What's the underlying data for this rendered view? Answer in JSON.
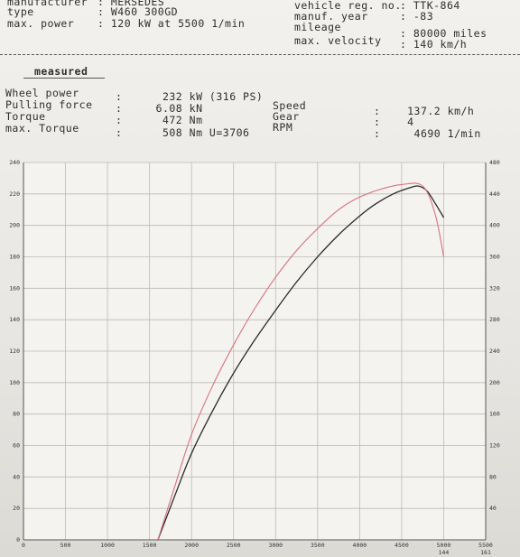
{
  "vehicle": {
    "manufacturer_label": "manufacturer",
    "manufacturer_value": ": MERSEDES",
    "type_label": "type",
    "type_value": ": W460 300GD",
    "max_power_label": "max. power",
    "max_power_value": ": 120 kW at 5500 1/min",
    "reg_label": "vehicle reg. no.",
    "reg_value": ": TTK-864",
    "year_label": "manuf. year",
    "year_value": ": -83",
    "mileage_label": "mileage",
    "mileage_value": ": 80000 miles",
    "velocity_label": "max. velocity",
    "velocity_value": ": 140 km/h"
  },
  "measured": {
    "heading": "measured",
    "wheel_power_label": "Wheel power",
    "wheel_power_value": ":      232 kW (316 PS)",
    "pulling_force_label": "Pulling force",
    "pulling_force_value": ":     6.08 kN",
    "torque_label": "Torque",
    "torque_value": ":      472 Nm",
    "max_torque_label": "max. Torque",
    "max_torque_value": ":      508 Nm U=3706",
    "speed_label": "Speed",
    "speed_value": ":    137.2 km/h",
    "gear_label": "Gear",
    "gear_value": ":    4",
    "rpm_label": "RPM",
    "rpm_value": ":     4690 1/min"
  },
  "colors": {
    "grid": "#bdbab4",
    "axis": "#555555",
    "power_curve": "#2a2a2a",
    "torque_curve": "#d9707a"
  },
  "chart_data": {
    "type": "line",
    "title": "",
    "xlabel": "",
    "ylabel": "",
    "xlim": [
      0,
      5500
    ],
    "ylim_left": [
      0,
      240
    ],
    "ylim_right": [
      0,
      480
    ],
    "grid": true,
    "x_ticks": [
      "0",
      "500",
      "1000",
      "1500",
      "2000",
      "2500",
      "3000",
      "3500",
      "4000",
      "4500",
      "5000",
      "5500"
    ],
    "x_sub_ticks": [
      "",
      "",
      "",
      "",
      "",
      "",
      "",
      "",
      "",
      "",
      "144",
      "161"
    ],
    "y_ticks_left": [
      "0",
      "20",
      "40",
      "60",
      "80",
      "100",
      "120",
      "140",
      "160",
      "180",
      "200",
      "220",
      "240"
    ],
    "y_ticks_right": [
      "",
      "40",
      "80",
      "120",
      "160",
      "200",
      "240",
      "280",
      "320",
      "360",
      "400",
      "440",
      "480"
    ],
    "series": [
      {
        "name": "",
        "axis": "left",
        "color_key": "power_curve",
        "x": [
          1600,
          1800,
          2000,
          2250,
          2500,
          2750,
          3000,
          3250,
          3500,
          3750,
          4000,
          4200,
          4400,
          4600,
          4700,
          4800,
          4900,
          5000
        ],
        "y": [
          0,
          28,
          55,
          82,
          106,
          127,
          146,
          164,
          180,
          194,
          206,
          214,
          220,
          224,
          225,
          222,
          214,
          205
        ]
      },
      {
        "name": "",
        "axis": "left",
        "color_key": "torque_curve",
        "x": [
          1600,
          1800,
          2000,
          2250,
          2500,
          2750,
          3000,
          3250,
          3500,
          3750,
          4000,
          4250,
          4500,
          4750,
          4900,
          5000
        ],
        "y": [
          0,
          34,
          67,
          98,
          124,
          147,
          167,
          184,
          198,
          210,
          218,
          223,
          226,
          225,
          207,
          180
        ]
      }
    ]
  }
}
